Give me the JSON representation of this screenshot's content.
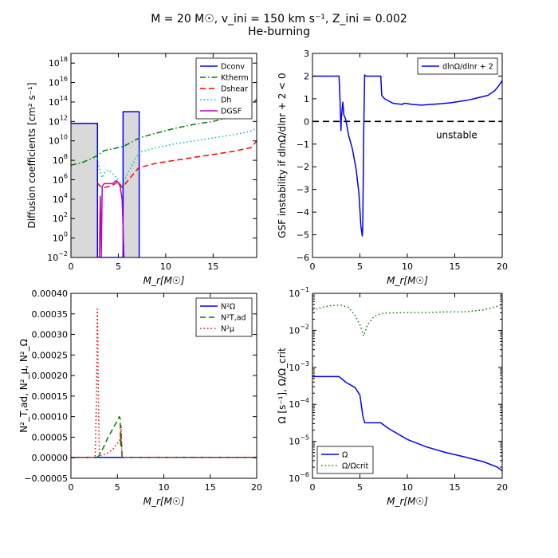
{
  "figure": {
    "title_line1": "M = 20 M☉, v_ini = 150 km s⁻¹, Z_ini = 0.002",
    "title_line2": "He-burning"
  },
  "chart_data": [
    {
      "id": "diffusion",
      "type": "line",
      "xlabel": "M_r[M☉]",
      "ylabel": "Diffusion coefficients [cm² s⁻¹]",
      "xlim": [
        0,
        19.6
      ],
      "ylim_log10": [
        -2,
        19
      ],
      "yscale": "log",
      "xticks": [
        0,
        5,
        10,
        15
      ],
      "ytick_exponents": [
        -2,
        0,
        2,
        4,
        6,
        8,
        10,
        12,
        14,
        16,
        18
      ],
      "legend_position": "top-right",
      "convective_zones": [
        {
          "x0": 0,
          "x1": 2.8,
          "log10_D": 11.8
        },
        {
          "x0": 5.5,
          "x1": 7.2,
          "log10_D": 13.0
        }
      ],
      "series": [
        {
          "name": "D_conv",
          "legend": "Dconv",
          "color": "#0000ff",
          "dash": "solid",
          "x": [
            0,
            2.8,
            2.8,
            5.5,
            5.5,
            7.2,
            7.2
          ],
          "log10_y": [
            11.8,
            11.8,
            -2,
            -2,
            13.0,
            13.0,
            -2
          ]
        },
        {
          "name": "K_therm",
          "legend": "Ktherm",
          "color": "#008000",
          "dash": "dashdot",
          "x": [
            0,
            1,
            2,
            2.8,
            3.5,
            5,
            5.5,
            7.2,
            9,
            11,
            13,
            15,
            17,
            18.5,
            19.6
          ],
          "log10_y": [
            7.5,
            7.7,
            8.1,
            8.5,
            9.0,
            9.3,
            9.4,
            10.3,
            10.8,
            11.3,
            11.7,
            12.0,
            12.5,
            13.0,
            14.3
          ]
        },
        {
          "name": "D_shear",
          "legend": "Dshear",
          "color": "#ff0000",
          "dash": "dashed",
          "x": [
            2.8,
            3.0,
            3.5,
            4.0,
            4.5,
            5.0,
            5.4,
            7.2,
            7.4,
            9,
            11,
            13,
            15,
            17,
            19,
            19.6
          ],
          "log10_y": [
            5.7,
            5.4,
            5.2,
            5.3,
            5.5,
            5.8,
            5.2,
            7.3,
            7.3,
            7.7,
            8.0,
            8.3,
            8.6,
            8.9,
            9.3,
            10.0
          ]
        },
        {
          "name": "D_h",
          "legend": "Dh",
          "color": "#00bfbf",
          "dash": "dotted",
          "x": [
            2.8,
            3.0,
            3.3,
            3.6,
            4.0,
            4.5,
            5.0,
            5.4,
            7.2,
            7.5,
            9,
            11,
            13,
            15,
            17,
            19,
            19.6
          ],
          "log10_y": [
            8.2,
            7.2,
            6.2,
            6.8,
            7.0,
            6.5,
            6.0,
            5.5,
            8.9,
            8.9,
            9.3,
            9.7,
            10.0,
            10.3,
            10.6,
            11.0,
            11.3
          ]
        },
        {
          "name": "D_GSF",
          "legend": "DGSF",
          "color": "#bf00bf",
          "dash": "solid",
          "x": [
            3.0,
            3.1,
            3.2,
            3.3,
            3.5,
            3.9,
            4.1,
            4.4,
            4.6,
            4.8,
            5.0,
            5.2,
            5.4,
            5.6
          ],
          "log10_y": [
            -2,
            4.3,
            -2,
            5.3,
            5.6,
            5.6,
            5.6,
            5.6,
            5.8,
            5.9,
            5.7,
            5.3,
            4.0,
            -2
          ]
        }
      ]
    },
    {
      "id": "gsf",
      "type": "line",
      "xlabel": "M_r[M☉]",
      "ylabel": "GSF instability if dlnΩ/dlnr + 2 < 0",
      "xlim": [
        0,
        20
      ],
      "ylim": [
        -6,
        3
      ],
      "xticks": [
        0,
        5,
        10,
        15,
        20
      ],
      "yticks": [
        -6,
        -5,
        -4,
        -3,
        -2,
        -1,
        0,
        1,
        2,
        3
      ],
      "legend_position": "top-right",
      "annotation": "unstable",
      "zero_line": 0,
      "series": [
        {
          "name": "dlnΩ/dlnr + 2",
          "legend": "dlnΩ/dlnr + 2",
          "color": "#0000ff",
          "dash": "solid",
          "x": [
            0,
            2.8,
            2.9,
            3.0,
            3.05,
            3.2,
            3.3,
            3.5,
            3.8,
            4.2,
            4.6,
            4.9,
            5.1,
            5.25,
            5.3,
            5.4,
            5.5,
            5.6,
            7.2,
            7.3,
            7.6,
            8.5,
            9.5,
            9.6,
            9.8,
            10.5,
            11.5,
            12.5,
            13.5,
            14.5,
            15.5,
            16.5,
            17.5,
            18.5,
            19.2,
            19.6,
            20.0
          ],
          "y": [
            2.0,
            2.0,
            1.0,
            -0.4,
            0.2,
            0.85,
            0.3,
            0.1,
            -0.6,
            -1.2,
            -2.1,
            -3.2,
            -4.6,
            -5.05,
            -4.6,
            -0.5,
            2.05,
            2.0,
            2.0,
            1.15,
            1.0,
            0.8,
            0.75,
            0.8,
            0.8,
            0.75,
            0.72,
            0.75,
            0.78,
            0.82,
            0.88,
            0.95,
            1.05,
            1.15,
            1.35,
            1.55,
            1.8
          ]
        }
      ]
    },
    {
      "id": "brunt",
      "type": "line",
      "xlabel": "M_r[M☉]",
      "ylabel": "N²_T,ad, N²_μ, N²_Ω",
      "xlim": [
        0,
        20
      ],
      "ylim": [
        -5e-05,
        0.0004
      ],
      "xticks": [
        0,
        5,
        10,
        15,
        20
      ],
      "ytick_labels": [
        "−0.00005",
        "0.00000",
        "0.00005",
        "0.00010",
        "0.00015",
        "0.00020",
        "0.00025",
        "0.00030",
        "0.00035",
        "0.00040"
      ],
      "yticks": [
        -5e-05,
        0,
        5e-05,
        0.0001,
        0.00015,
        0.0002,
        0.00025,
        0.0003,
        0.00035,
        0.0004
      ],
      "legend_position": "top-right",
      "series": [
        {
          "name": "N2_Omega",
          "legend": "N²Ω",
          "color": "#0000ff",
          "dash": "solid",
          "x": [
            0,
            20
          ],
          "y": [
            1e-06,
            1e-06
          ]
        },
        {
          "name": "N2_T_ad",
          "legend": "N²T,ad",
          "color": "#008000",
          "dash": "dashed",
          "x": [
            0,
            2.8,
            3.0,
            3.5,
            4.0,
            4.5,
            5.0,
            5.2,
            5.3,
            5.35,
            5.4,
            5.5,
            5.55,
            20
          ],
          "y": [
            1e-06,
            1e-06,
            5e-06,
            2.5e-05,
            5e-05,
            7e-05,
            9e-05,
            0.0001,
            9.5e-05,
            3e-05,
            6e-05,
            5e-06,
            1e-06,
            1e-06
          ]
        },
        {
          "name": "N2_mu",
          "legend": "N²μ",
          "color": "#ff0000",
          "dash": "dotted",
          "x": [
            0,
            2.6,
            2.75,
            2.85,
            2.95,
            3.05,
            3.2,
            3.6,
            4.0,
            4.5,
            5.0,
            5.3,
            5.4,
            5.45,
            5.5,
            5.6,
            20
          ],
          "y": [
            1e-06,
            1e-06,
            0.00015,
            0.000362,
            0.00015,
            1.5e-05,
            5e-06,
            8e-06,
            1.2e-05,
            2e-05,
            3.5e-05,
            4.5e-05,
            8e-05,
            4e-05,
            3e-06,
            1e-06,
            1e-06
          ]
        }
      ]
    },
    {
      "id": "omega",
      "type": "line",
      "xlabel": "M_r[M☉]",
      "ylabel": "Ω [s⁻¹], Ω/Ω_crit",
      "xlim": [
        0,
        20
      ],
      "ylim_log10": [
        -6,
        -1
      ],
      "yscale": "log",
      "xticks": [
        0,
        5,
        10,
        15,
        20
      ],
      "ytick_exponents": [
        -6,
        -5,
        -4,
        -3,
        -2,
        -1
      ],
      "legend_position": "bottom-left",
      "series": [
        {
          "name": "Omega",
          "legend": "Ω",
          "color": "#0000ff",
          "dash": "solid",
          "x": [
            0,
            2.8,
            3.5,
            4.5,
            5.0,
            5.3,
            5.5,
            7.2,
            8,
            10,
            12,
            14,
            16,
            18,
            19.5,
            20
          ],
          "log10_y": [
            -3.25,
            -3.25,
            -3.4,
            -3.55,
            -3.75,
            -4.3,
            -4.5,
            -4.5,
            -4.65,
            -4.95,
            -5.15,
            -5.3,
            -5.42,
            -5.55,
            -5.7,
            -5.8
          ]
        },
        {
          "name": "Omega_over_Omega_crit",
          "legend": "Ω/Ωcrit",
          "color": "#008000",
          "dash": "dotted",
          "x": [
            0,
            1,
            2,
            3,
            3.8,
            4.5,
            5.0,
            5.4,
            5.8,
            6.5,
            7.2,
            8,
            10,
            12,
            14,
            16,
            18,
            19.5,
            20
          ],
          "log10_y": [
            -1.45,
            -1.38,
            -1.33,
            -1.32,
            -1.38,
            -1.6,
            -1.85,
            -2.15,
            -1.85,
            -1.62,
            -1.55,
            -1.53,
            -1.52,
            -1.52,
            -1.5,
            -1.5,
            -1.45,
            -1.35,
            -1.3
          ]
        }
      ]
    }
  ]
}
